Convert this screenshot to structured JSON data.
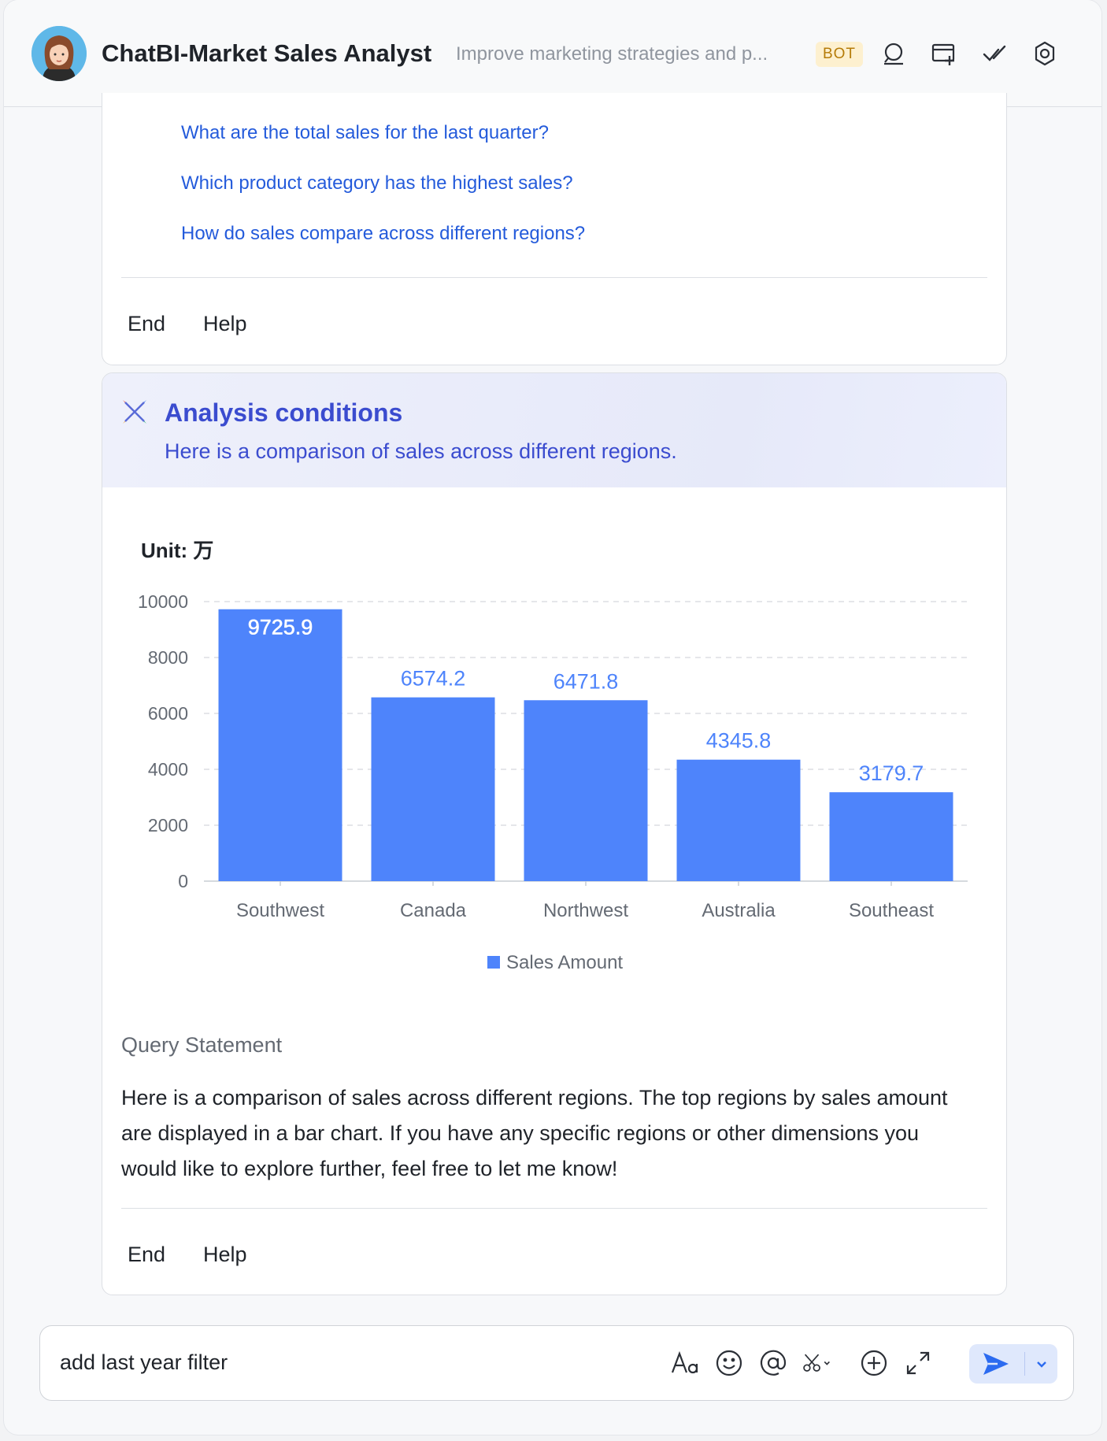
{
  "header": {
    "title": "ChatBI-Market Sales Analyst",
    "subtitle": "Improve marketing strategies and p...",
    "badge": "BOT",
    "icons": [
      "search-chat-icon",
      "add-card-icon",
      "check-icon",
      "settings-icon"
    ]
  },
  "card1": {
    "suggestions": [
      "What are the total sales for the last quarter?",
      "Which product category has the highest sales?",
      "How do sales compare across different regions?"
    ],
    "end_label": "End",
    "help_label": "Help"
  },
  "card2": {
    "analysis_title": "Analysis conditions",
    "analysis_desc": "Here is a comparison of sales across different regions.",
    "unit_label": "Unit: 万",
    "query_label": "Query Statement",
    "query_text": "Here is a comparison of sales across different regions. The top regions by sales amount are displayed in a bar chart. If you have any specific regions or other dimensions you would like to explore further, feel free to let me know!",
    "end_label": "End",
    "help_label": "Help"
  },
  "chart_data": {
    "type": "bar",
    "categories": [
      "Southwest",
      "Canada",
      "Northwest",
      "Australia",
      "Southeast"
    ],
    "series": [
      {
        "name": "Sales Amount",
        "values": [
          9725.9,
          6574.2,
          6471.8,
          4345.8,
          3179.7
        ]
      }
    ],
    "value_labels": [
      "9725.9",
      "6574.2",
      "6471.8",
      "4345.8",
      "3179.7"
    ],
    "yticks": [
      "0",
      "2000",
      "4000",
      "6000",
      "8000",
      "10000"
    ],
    "ylim": [
      0,
      10000
    ],
    "grid": true,
    "legend_position": "bottom",
    "color": "#4e84fb"
  },
  "input": {
    "value": "add last year filter",
    "tools": [
      "text-format-icon",
      "emoji-icon",
      "mention-icon",
      "scissors-icon",
      "plus-circle-icon",
      "expand-icon"
    ]
  },
  "colors": {
    "link": "#245bdb",
    "accent": "#3b4ccf",
    "bar": "#4e84fb"
  }
}
